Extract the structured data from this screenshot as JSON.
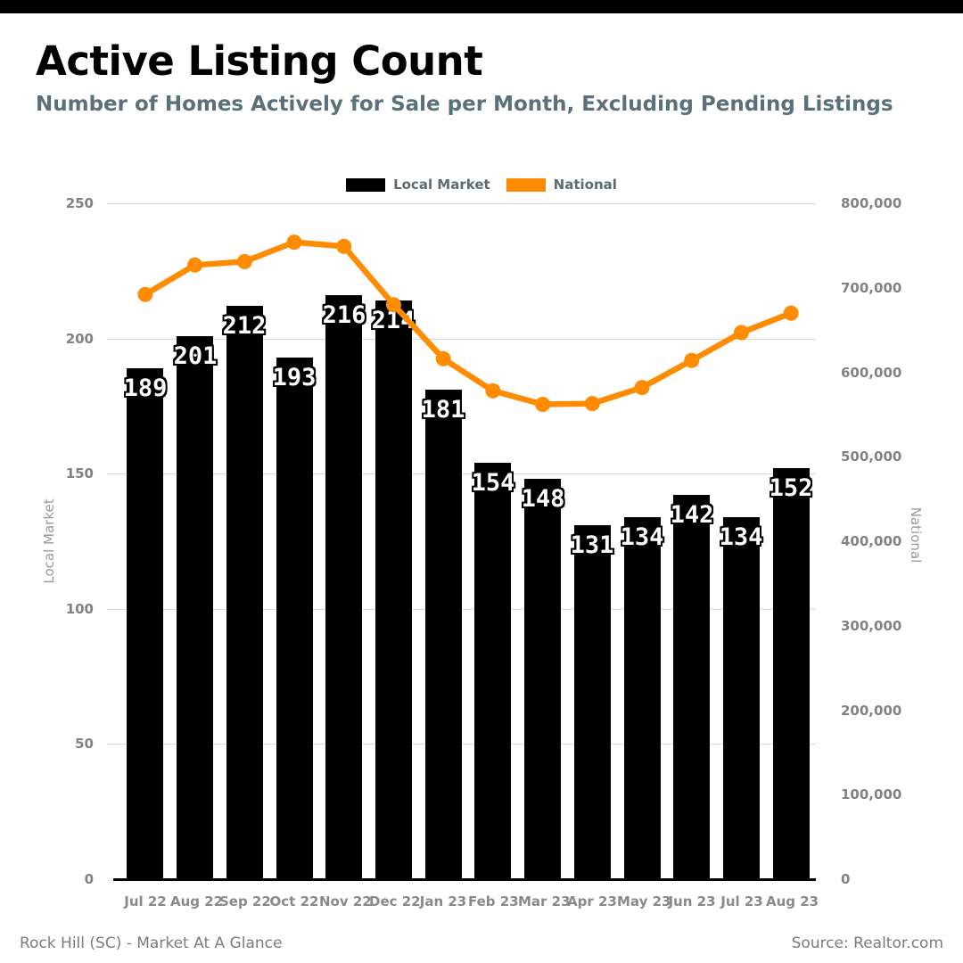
{
  "header": {
    "title": "Active Listing Count",
    "subtitle": "Number of Homes Actively for Sale per Month, Excluding Pending Listings"
  },
  "chart_data": {
    "type": "bar+line",
    "title": "Active Listing Count",
    "categories": [
      "Jul 22",
      "Aug 22",
      "Sep 22",
      "Oct 22",
      "Nov 22",
      "Dec 22",
      "Jan 23",
      "Feb 23",
      "Mar 23",
      "Apr 23",
      "May 23",
      "Jun 23",
      "Jul 23",
      "Aug 23"
    ],
    "series": [
      {
        "name": "Local Market",
        "type": "bar",
        "axis": "left",
        "color": "#000000",
        "values": [
          189,
          201,
          212,
          193,
          216,
          214,
          181,
          154,
          148,
          131,
          134,
          142,
          134,
          152
        ]
      },
      {
        "name": "National",
        "type": "line",
        "axis": "right",
        "color": "#FF8C00",
        "values": [
          692000,
          727000,
          731000,
          754000,
          749000,
          680000,
          616000,
          578000,
          562000,
          563000,
          582000,
          614000,
          647000,
          670000
        ]
      }
    ],
    "axes": {
      "left": {
        "title": "Local Market",
        "range": [
          0,
          250
        ],
        "tick_values": [
          0,
          50,
          100,
          150,
          200,
          250
        ],
        "tick_labels": [
          "0",
          "50",
          "100",
          "150",
          "200",
          "250"
        ]
      },
      "right": {
        "title": "National",
        "range": [
          0,
          800000
        ],
        "tick_values": [
          0,
          100000,
          200000,
          300000,
          400000,
          500000,
          600000,
          700000,
          800000
        ],
        "tick_labels": [
          "0",
          "100,000",
          "200,000",
          "300,000",
          "400,000",
          "500,000",
          "600,000",
          "700,000",
          "800,000"
        ]
      }
    },
    "grid": true,
    "legend_position": "top-center",
    "bar_value_labels": true
  },
  "footer": {
    "left": "Rock Hill (SC) - Market At A Glance",
    "right": "Source: Realtor.com"
  }
}
